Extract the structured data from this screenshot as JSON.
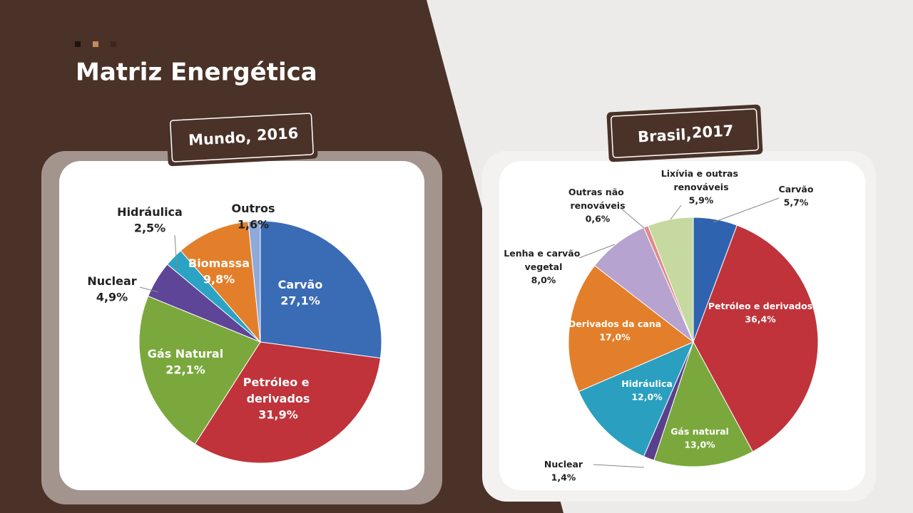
{
  "page_title": "Matriz Energética",
  "chart_data": [
    {
      "type": "pie",
      "title": "Mundo,",
      "subtitle": "2016",
      "categories": [
        "Carvão",
        "Petróleo e derivados",
        "Gás Natural",
        "Nuclear",
        "Hidráulica",
        "Biomassa",
        "Outros"
      ],
      "values": [
        27.1,
        31.9,
        22.1,
        4.9,
        2.5,
        9.8,
        1.6
      ],
      "value_labels": [
        "27,1%",
        "31,9%",
        "22,1%",
        "4,9%",
        "2,5%",
        "9,8%",
        "1,6%"
      ],
      "colors": [
        "#3a6bb5",
        "#c0333a",
        "#7aa83c",
        "#5f4597",
        "#2ba3c4",
        "#e37f2a",
        "#8eaadb"
      ]
    },
    {
      "type": "pie",
      "title": "Brasil,",
      "subtitle": "2017",
      "categories": [
        "Carvão",
        "Petróleo e derivados",
        "Gás natural",
        "Nuclear",
        "Hidráulica",
        "Derivados da cana",
        "Lenha e carvão vegetal",
        "Outras não renováveis",
        "Lixívia e outras renováveis"
      ],
      "values": [
        5.7,
        36.4,
        13.0,
        1.4,
        12.0,
        17.0,
        8.0,
        0.6,
        5.9
      ],
      "value_labels": [
        "5,7%",
        "36,4%",
        "13,0%",
        "1,4%",
        "12,0%",
        "17,0%",
        "8,0%",
        "0,6%",
        "5,9%"
      ],
      "colors": [
        "#2f63b0",
        "#c0333a",
        "#7aa83c",
        "#5a3f8e",
        "#2a9fbf",
        "#e37f2a",
        "#b6a3cf",
        "#e08a8a",
        "#c5d9a0"
      ]
    }
  ]
}
